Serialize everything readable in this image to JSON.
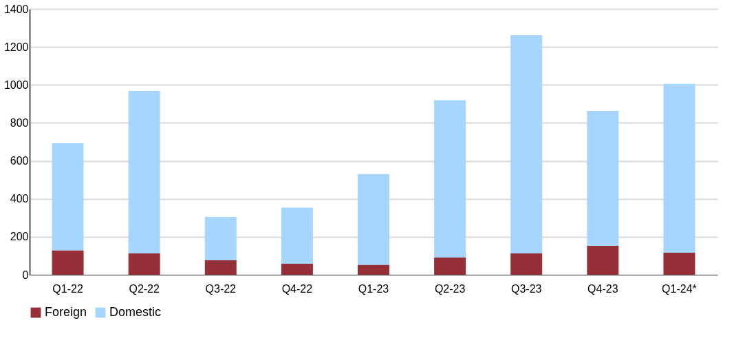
{
  "chart_data": {
    "type": "bar",
    "stacked": true,
    "categories": [
      "Q1-22",
      "Q2-22",
      "Q3-22",
      "Q4-22",
      "Q1-23",
      "Q2-23",
      "Q3-23",
      "Q4-23",
      "Q1-24*"
    ],
    "series": [
      {
        "name": "Foreign",
        "color": "#953039",
        "values": [
          129,
          112,
          76,
          58,
          53,
          91,
          112,
          152,
          116
        ]
      },
      {
        "name": "Domestic",
        "color": "#a6d6fd",
        "values": [
          564,
          856,
          229,
          296,
          477,
          828,
          1150,
          711,
          890
        ]
      }
    ],
    "ylim": [
      0,
      1400
    ],
    "yticks": [
      0,
      200,
      400,
      600,
      800,
      1000,
      1200,
      1400
    ],
    "grid": "y",
    "legend": "bottom"
  }
}
